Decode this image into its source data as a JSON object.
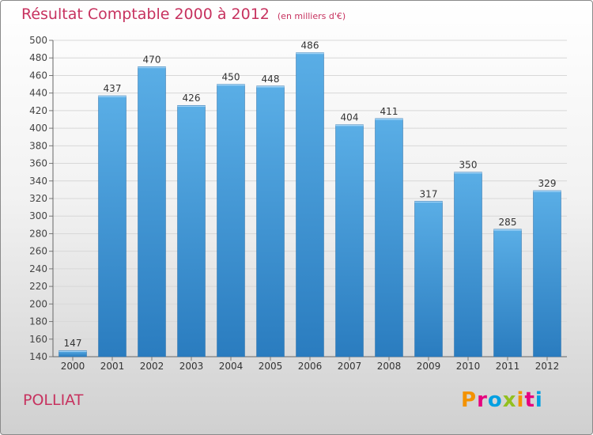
{
  "title": "Résultat Comptable 2000 à 2012",
  "subtitle": "(en milliers d'€)",
  "commune": "POLLIAT",
  "brand": {
    "text": "Proxiti",
    "colors": [
      "#f39200",
      "#e6007e",
      "#00a0e2",
      "#93c01f",
      "#f39200",
      "#e6007e",
      "#00a0e2"
    ]
  },
  "colors": {
    "title": "#c7325f",
    "bar_light": "#5aaee6",
    "bar_dark": "#2a7cbf",
    "grid": "#d8d8d8"
  },
  "chart_data": {
    "type": "bar",
    "title": "Résultat Comptable 2000 à 2012",
    "xlabel": "",
    "ylabel": "",
    "categories": [
      "2000",
      "2001",
      "2002",
      "2003",
      "2004",
      "2005",
      "2006",
      "2007",
      "2008",
      "2009",
      "2010",
      "2011",
      "2012"
    ],
    "values": [
      147,
      437,
      470,
      426,
      450,
      448,
      486,
      404,
      411,
      317,
      350,
      285,
      329
    ],
    "ylim": [
      140,
      500
    ],
    "yticks": [
      140,
      160,
      180,
      200,
      220,
      240,
      260,
      280,
      300,
      320,
      340,
      360,
      380,
      400,
      420,
      440,
      460,
      480,
      500
    ],
    "grid": true
  }
}
